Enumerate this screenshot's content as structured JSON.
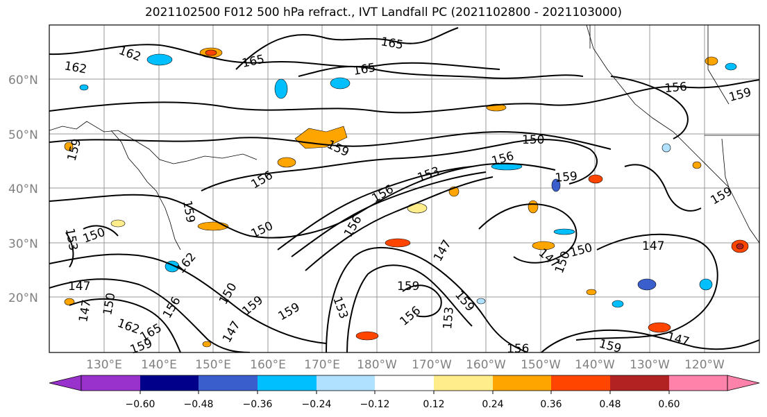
{
  "title": "2021102500 F012 500 hPa refract., IVT Landfall PC (2021102800 - 2021103000)",
  "lat_labels": [
    "60°N",
    "50°N",
    "40°N",
    "30°N",
    "20°N"
  ],
  "lon_labels": [
    "130°E",
    "140°E",
    "150°E",
    "160°E",
    "170°E",
    "180°W",
    "170°W",
    "160°W",
    "150°W",
    "140°W",
    "130°W",
    "120°W"
  ],
  "colorbar": {
    "colors": [
      "#9932CC",
      "#00008B",
      "#3A5FCD",
      "#00BFFF",
      "#B0E2FF",
      "#FFFFFF",
      "#FFFFFF",
      "#FFEC8B",
      "#FFA500",
      "#FF4500",
      "#B22222",
      "#FF82AB"
    ],
    "labels": [
      "−0.60",
      "−0.48",
      "−0.36",
      "−0.24",
      "−0.12",
      "0.12",
      "0.24",
      "0.36",
      "0.48",
      "0.60"
    ]
  },
  "contour_labels": [
    "162",
    "162",
    "165",
    "165",
    "165",
    "156",
    "159",
    "159",
    "159",
    "150",
    "156",
    "153",
    "156",
    "156",
    "159",
    "159",
    "153",
    "150",
    "150",
    "147",
    "147",
    "150",
    "159",
    "147",
    "147",
    "159",
    "156",
    "156",
    "159",
    "165",
    "162",
    "156",
    "147",
    "150",
    "153",
    "150",
    "162",
    "159",
    "147",
    "159",
    "153",
    "156",
    "159",
    "147",
    "150",
    "159"
  ]
}
